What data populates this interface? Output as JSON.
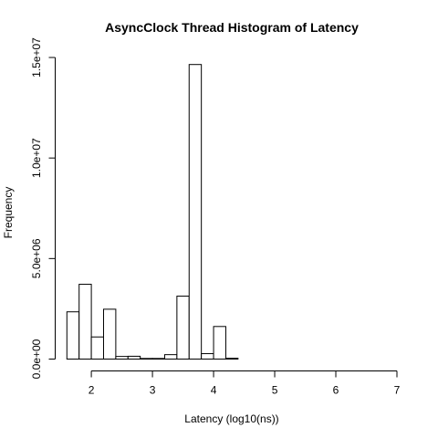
{
  "chart_data": {
    "type": "bar",
    "title": "AsyncClock Thread Histogram of Latency",
    "xlabel": "Latency (log10(ns))",
    "ylabel": "Frequency",
    "bins": [
      {
        "start": 1.6,
        "end": 1.8,
        "count": 2350000
      },
      {
        "start": 1.8,
        "end": 2.0,
        "count": 3720000
      },
      {
        "start": 2.0,
        "end": 2.2,
        "count": 1100000
      },
      {
        "start": 2.2,
        "end": 2.4,
        "count": 2480000
      },
      {
        "start": 2.4,
        "end": 2.6,
        "count": 130000
      },
      {
        "start": 2.6,
        "end": 2.8,
        "count": 140000
      },
      {
        "start": 2.8,
        "end": 3.0,
        "count": 30000
      },
      {
        "start": 3.0,
        "end": 3.2,
        "count": 30000
      },
      {
        "start": 3.2,
        "end": 3.4,
        "count": 220000
      },
      {
        "start": 3.4,
        "end": 3.6,
        "count": 3130000
      },
      {
        "start": 3.6,
        "end": 3.8,
        "count": 14650000
      },
      {
        "start": 3.8,
        "end": 4.0,
        "count": 270000
      },
      {
        "start": 4.0,
        "end": 4.2,
        "count": 1620000
      },
      {
        "start": 4.2,
        "end": 4.4,
        "count": 40000
      },
      {
        "start": 4.4,
        "end": 4.6,
        "count": 0
      },
      {
        "start": 4.6,
        "end": 4.8,
        "count": 0
      },
      {
        "start": 4.8,
        "end": 5.0,
        "count": 0
      },
      {
        "start": 5.0,
        "end": 5.2,
        "count": 0
      },
      {
        "start": 5.2,
        "end": 5.4,
        "count": 0
      },
      {
        "start": 5.4,
        "end": 5.6,
        "count": 0
      },
      {
        "start": 5.6,
        "end": 5.8,
        "count": 0
      },
      {
        "start": 5.8,
        "end": 6.0,
        "count": 0
      },
      {
        "start": 6.0,
        "end": 6.2,
        "count": 0
      },
      {
        "start": 6.2,
        "end": 6.4,
        "count": 0
      },
      {
        "start": 6.4,
        "end": 6.6,
        "count": 0
      },
      {
        "start": 6.6,
        "end": 6.8,
        "count": 0
      },
      {
        "start": 6.8,
        "end": 7.0,
        "count": 0
      }
    ],
    "xlim": [
      1.6,
      7.0
    ],
    "ylim": [
      0,
      15000000
    ],
    "x_ticks": [
      {
        "value": 2,
        "label": "2"
      },
      {
        "value": 3,
        "label": "3"
      },
      {
        "value": 4,
        "label": "4"
      },
      {
        "value": 5,
        "label": "5"
      },
      {
        "value": 6,
        "label": "6"
      },
      {
        "value": 7,
        "label": "7"
      }
    ],
    "y_ticks": [
      {
        "value": 0,
        "label": "0.0e+00"
      },
      {
        "value": 5000000,
        "label": "5.0e+06"
      },
      {
        "value": 10000000,
        "label": "1.0e+07"
      },
      {
        "value": 15000000,
        "label": "1.5e+07"
      }
    ],
    "grid": false,
    "bar_fill": "#ffffff",
    "bar_stroke": "#000000"
  }
}
